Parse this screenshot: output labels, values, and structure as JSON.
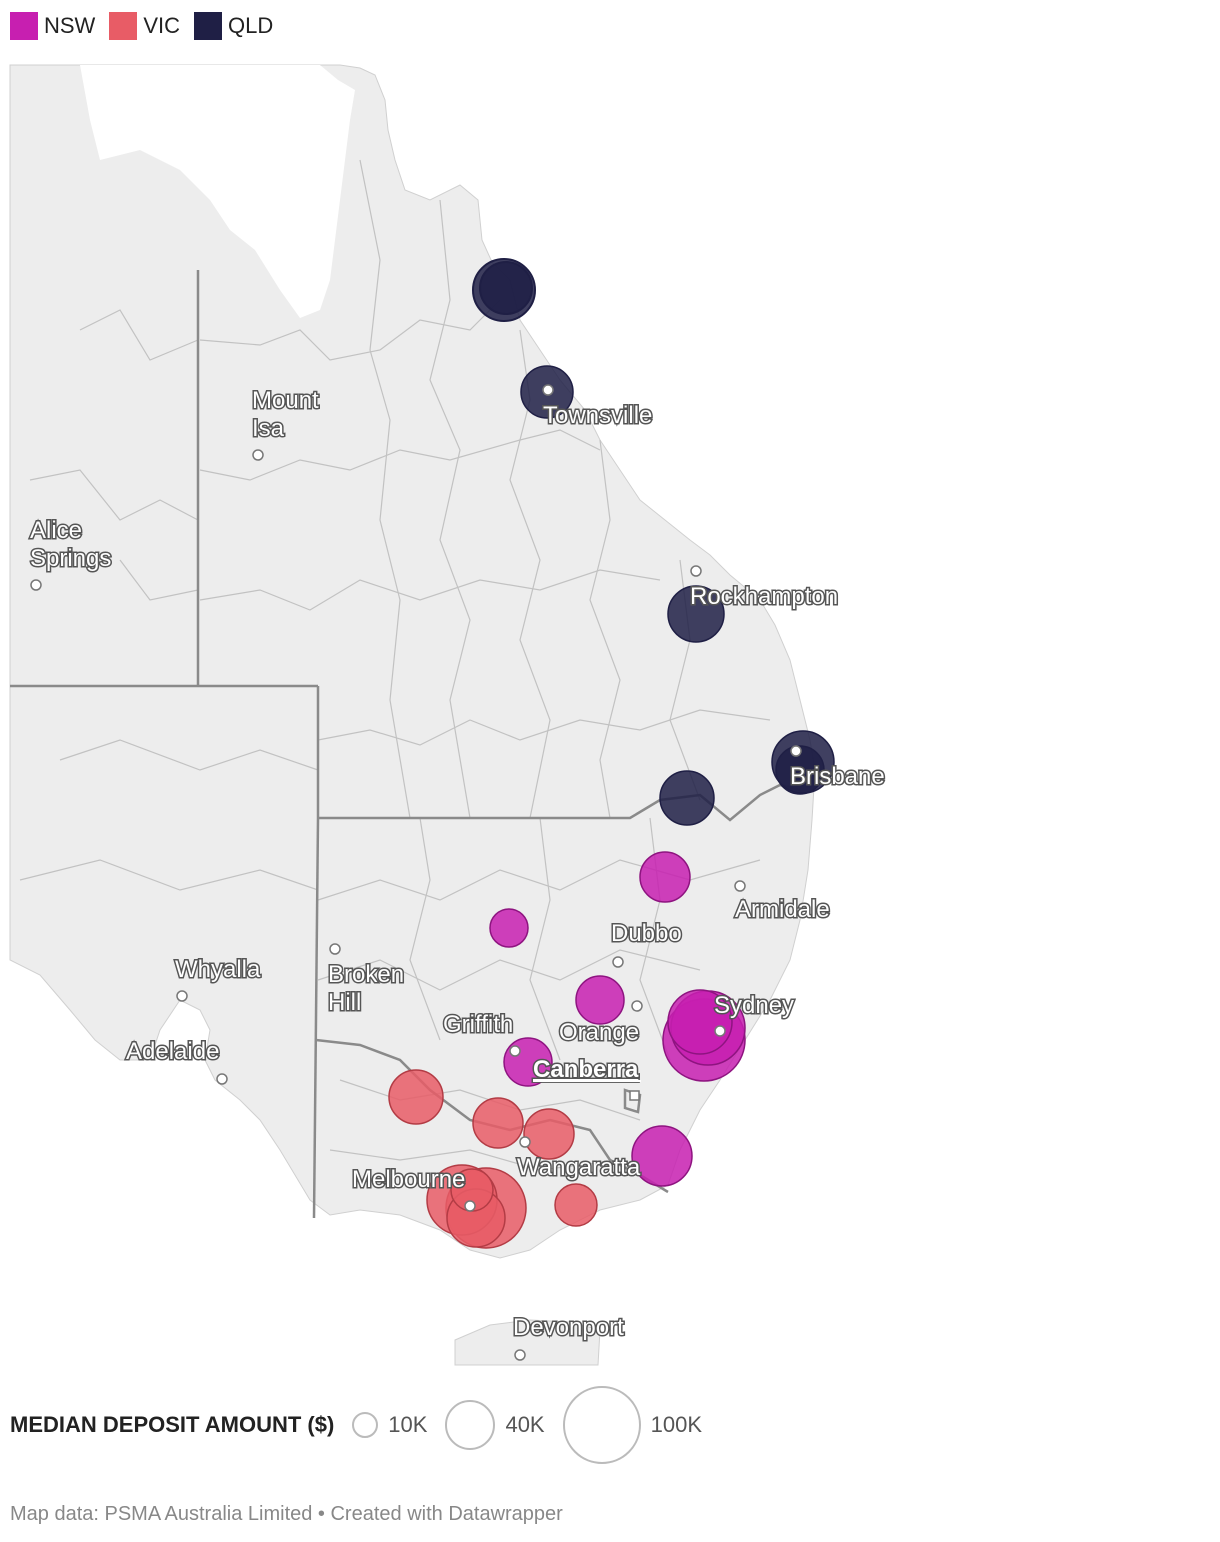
{
  "legend": {
    "items": [
      {
        "label": "NSW",
        "color": "#c71fb0"
      },
      {
        "label": "VIC",
        "color": "#e85c66"
      },
      {
        "label": "QLD",
        "color": "#1f1f45"
      }
    ]
  },
  "map": {
    "land_color": "#ededed",
    "border_color": "#bdbdbd",
    "state_border_color": "#8a8a8a",
    "cities": [
      {
        "name": "Mount\nIsa",
        "type": "city"
      },
      {
        "name": "Townsville",
        "type": "city"
      },
      {
        "name": "Alice\nSprings",
        "type": "city"
      },
      {
        "name": "Rockhampton",
        "type": "city"
      },
      {
        "name": "Brisbane",
        "type": "city"
      },
      {
        "name": "Armidale",
        "type": "city"
      },
      {
        "name": "Dubbo",
        "type": "city"
      },
      {
        "name": "Whyalla",
        "type": "city"
      },
      {
        "name": "Broken\nHill",
        "type": "city"
      },
      {
        "name": "Sydney",
        "type": "city"
      },
      {
        "name": "Griffith",
        "type": "city"
      },
      {
        "name": "Orange",
        "type": "city"
      },
      {
        "name": "Adelaide",
        "type": "city"
      },
      {
        "name": "Canberra",
        "type": "capital"
      },
      {
        "name": "Wangaratta",
        "type": "city"
      },
      {
        "name": "Melbourne",
        "type": "city"
      },
      {
        "name": "Devonport",
        "type": "city"
      }
    ]
  },
  "size_legend": {
    "title": "MEDIAN DEPOSIT AMOUNT ($)",
    "items": [
      {
        "label": "10K",
        "value": 10000
      },
      {
        "label": "40K",
        "value": 40000
      },
      {
        "label": "100K",
        "value": 100000
      }
    ]
  },
  "footer": "Map data: PSMA Australia Limited • Created with Datawrapper"
}
